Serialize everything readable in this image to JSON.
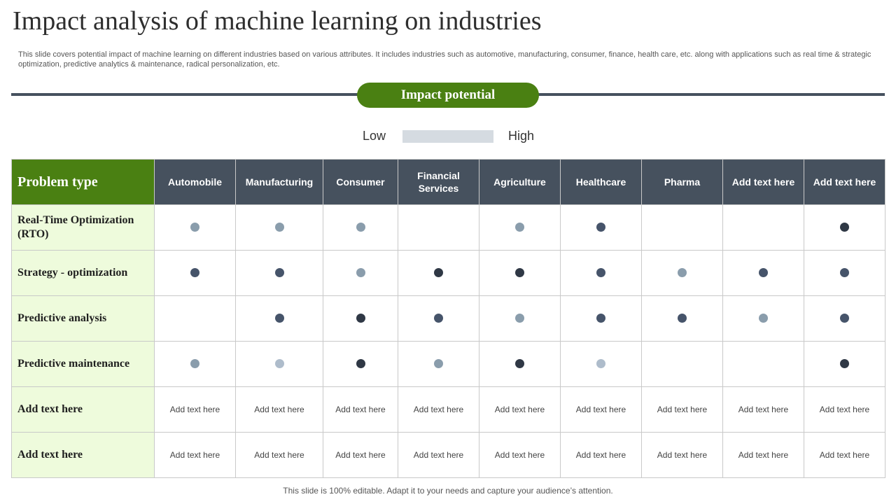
{
  "title": "Impact analysis of machine learning on industries",
  "description": "This slide covers potential impact of machine learning on different industries based on various attributes. It includes industries such as automotive, manufacturing, consumer, finance, health care, etc.  along with applications such as real time & strategic optimization, predictive analytics &  maintenance, radical personalization, etc.",
  "section_label": "Impact potential",
  "legend": {
    "low": "Low",
    "high": "High"
  },
  "table": {
    "corner": "Problem type",
    "columns": [
      "Automobile",
      "Manufacturing",
      "Consumer",
      "Financial Services",
      "Agriculture",
      "Healthcare",
      "Pharma",
      "Add  text here",
      "Add  text here"
    ],
    "rows": [
      {
        "label": "Real-Time Optimization (RTO)",
        "cells": [
          2,
          2,
          2,
          0,
          2,
          3,
          0,
          0,
          4
        ]
      },
      {
        "label": "Strategy - optimization",
        "cells": [
          3,
          3,
          2,
          4,
          4,
          3,
          2,
          3,
          3
        ]
      },
      {
        "label": "Predictive analysis",
        "cells": [
          0,
          3,
          4,
          3,
          2,
          3,
          3,
          2,
          3
        ]
      },
      {
        "label": "Predictive maintenance",
        "cells": [
          2,
          1,
          4,
          2,
          4,
          1,
          0,
          0,
          4
        ]
      },
      {
        "label": "Add text here",
        "cells": [
          "Add text here",
          "Add text here",
          "Add text here",
          "Add text here",
          "Add text here",
          "Add text here",
          "Add text here",
          "Add text here",
          "Add text here"
        ]
      },
      {
        "label": "Add text here",
        "cells": [
          "Add text here",
          "Add text here",
          "Add text here",
          "Add text here",
          "Add text here",
          "Add text here",
          "Add text here",
          "Add text here",
          "Add text here"
        ]
      }
    ]
  },
  "footer": "This slide is 100% editable. Adapt it to your needs and capture your audience’s attention.",
  "colors": {
    "header_green": "#4a8012",
    "header_slate": "#46515e",
    "row_head_bg": "#eefbdc",
    "dot_levels": [
      "#aebccb",
      "#8a9dac",
      "#46546a",
      "#2f3845"
    ]
  }
}
